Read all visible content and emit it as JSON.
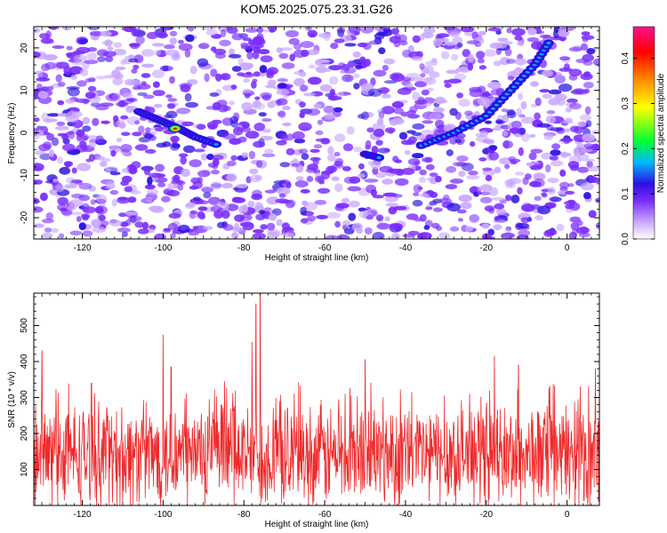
{
  "title": "KOM5.2025.075.23.31.G26",
  "chart_data": [
    {
      "type": "heatmap",
      "xlabel": "Height of straight line (km)",
      "ylabel": "Frequency (Hz)",
      "xlim": [
        -132,
        8
      ],
      "ylim": [
        -25,
        25
      ],
      "xticks": [
        -120,
        -100,
        -80,
        -60,
        -40,
        -20,
        0
      ],
      "yticks": [
        -20,
        -10,
        0,
        10,
        20
      ],
      "colorbar": {
        "label": "Normalized spectral amplitude",
        "range": [
          0,
          0.47
        ],
        "ticks": [
          "0.0",
          "0.1",
          "0.2",
          "0.3",
          "0.4"
        ],
        "colors": [
          "#ffffff",
          "#c9a8ff",
          "#7a2cff",
          "#2b10e0",
          "#00b8ff",
          "#00ff30",
          "#ffff00",
          "#ff8000",
          "#ff0000",
          "#ff1090"
        ]
      },
      "streaks": [
        {
          "x": [
            -106,
            -101,
            -96,
            -92,
            -86
          ],
          "y": [
            5,
            3,
            1,
            -1,
            -3
          ]
        },
        {
          "x": [
            -50,
            -46
          ],
          "y": [
            -5,
            -6
          ]
        },
        {
          "x": [
            -36,
            -28,
            -20,
            -14,
            -8,
            -4
          ],
          "y": [
            -3,
            0,
            4,
            10,
            16,
            22
          ]
        }
      ],
      "peak": {
        "x": -97,
        "y": 1,
        "value": 0.45
      }
    },
    {
      "type": "line",
      "xlabel": "Height of straight line (km)",
      "ylabel": "SNR (10 * v/v)",
      "xlim": [
        -132,
        8
      ],
      "ylim": [
        0,
        590
      ],
      "xticks": [
        -120,
        -100,
        -80,
        -60,
        -40,
        -20,
        0
      ],
      "yticks": [
        100,
        200,
        300,
        400,
        500
      ],
      "series": [
        {
          "color": "#ee2a2a",
          "baseline": 140,
          "noise": 170
        }
      ],
      "spikes": [
        {
          "x": -130,
          "y": 430
        },
        {
          "x": -100,
          "y": 475
        },
        {
          "x": -98,
          "y": 385
        },
        {
          "x": -78,
          "y": 455
        },
        {
          "x": -77,
          "y": 560
        },
        {
          "x": -76,
          "y": 590
        },
        {
          "x": -50,
          "y": 405
        },
        {
          "x": -18,
          "y": 415
        },
        {
          "x": -12,
          "y": 390
        },
        {
          "x": 7,
          "y": 380
        }
      ]
    }
  ]
}
